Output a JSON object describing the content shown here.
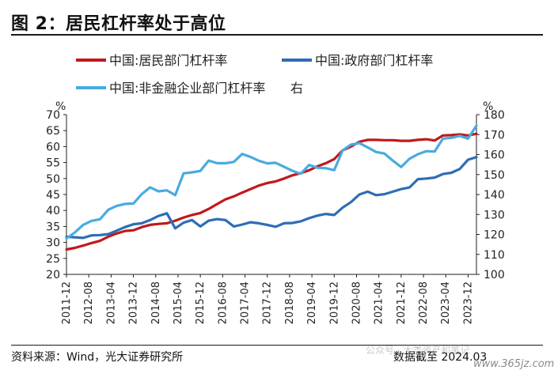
{
  "header": {
    "title": "图 2：居民杠杆率处于高位"
  },
  "footer": {
    "source": "资料来源：Wind，光大证券研究所",
    "cutoff": "数据截至 2024.03",
    "watermark": "公众号 · 大类资产和笔记",
    "website": "www.365jz.com"
  },
  "chart_data": {
    "type": "line",
    "left_unit": "%",
    "right_unit": "%",
    "right_axis_tag": "右",
    "left_ylim": [
      20,
      70
    ],
    "right_ylim": [
      100,
      180
    ],
    "left_ticks": [
      "20",
      "25",
      "30",
      "35",
      "40",
      "45",
      "50",
      "55",
      "60",
      "65",
      "70"
    ],
    "right_ticks": [
      "100",
      "110",
      "120",
      "130",
      "140",
      "150",
      "160",
      "170",
      "180"
    ],
    "x_labels": [
      "2011-12",
      "2012-08",
      "2013-04",
      "2013-12",
      "2014-08",
      "2015-04",
      "2015-12",
      "2016-08",
      "2017-04",
      "2017-12",
      "2018-08",
      "2019-04",
      "2019-12",
      "2020-08",
      "2021-04",
      "2021-12",
      "2022-08",
      "2023-04",
      "2023-12"
    ],
    "grid": false,
    "legend_position": "top",
    "series": [
      {
        "name": "中国:居民部门杠杆率",
        "axis": "left",
        "color": "#c0191c",
        "x": [
          "2011-12",
          "2012-03",
          "2012-06",
          "2012-09",
          "2012-12",
          "2013-03",
          "2013-06",
          "2013-09",
          "2013-12",
          "2014-03",
          "2014-06",
          "2014-09",
          "2014-12",
          "2015-03",
          "2015-06",
          "2015-09",
          "2015-12",
          "2016-03",
          "2016-06",
          "2016-09",
          "2016-12",
          "2017-03",
          "2017-06",
          "2017-09",
          "2017-12",
          "2018-03",
          "2018-06",
          "2018-09",
          "2018-12",
          "2019-03",
          "2019-06",
          "2019-09",
          "2019-12",
          "2020-03",
          "2020-06",
          "2020-09",
          "2020-12",
          "2021-03",
          "2021-06",
          "2021-09",
          "2021-12",
          "2022-03",
          "2022-06",
          "2022-09",
          "2022-12",
          "2023-03",
          "2023-06",
          "2023-09",
          "2023-12",
          "2024-03"
        ],
        "values": [
          27.8,
          28.3,
          29.0,
          29.8,
          30.5,
          31.8,
          32.8,
          33.6,
          33.8,
          34.8,
          35.5,
          35.8,
          36.0,
          36.8,
          37.8,
          38.6,
          39.2,
          40.5,
          42.0,
          43.5,
          44.4,
          45.6,
          46.7,
          47.8,
          48.6,
          49.1,
          50.0,
          51.0,
          51.7,
          52.6,
          53.8,
          54.8,
          56.1,
          58.8,
          60.0,
          61.5,
          62.1,
          62.1,
          62.0,
          62.0,
          61.8,
          61.8,
          62.1,
          62.3,
          61.9,
          63.5,
          63.6,
          63.8,
          63.5,
          64.0
        ]
      },
      {
        "name": "中国:政府部门杠杆率",
        "axis": "left",
        "color": "#2e6db5",
        "x": [
          "2011-12",
          "2012-03",
          "2012-06",
          "2012-09",
          "2012-12",
          "2013-03",
          "2013-06",
          "2013-09",
          "2013-12",
          "2014-03",
          "2014-06",
          "2014-09",
          "2014-12",
          "2015-03",
          "2015-06",
          "2015-09",
          "2015-12",
          "2016-03",
          "2016-06",
          "2016-09",
          "2016-12",
          "2017-03",
          "2017-06",
          "2017-09",
          "2017-12",
          "2018-03",
          "2018-06",
          "2018-09",
          "2018-12",
          "2019-03",
          "2019-06",
          "2019-09",
          "2019-12",
          "2020-03",
          "2020-06",
          "2020-09",
          "2020-12",
          "2021-03",
          "2021-06",
          "2021-09",
          "2021-12",
          "2022-03",
          "2022-06",
          "2022-09",
          "2022-12",
          "2023-03",
          "2023-06",
          "2023-09",
          "2023-12",
          "2024-03"
        ],
        "values": [
          31.8,
          31.6,
          31.4,
          32.2,
          32.3,
          32.6,
          33.7,
          34.8,
          35.7,
          36.0,
          37.0,
          38.3,
          39.1,
          34.4,
          36.2,
          37.0,
          35.0,
          36.8,
          37.3,
          37.0,
          35.0,
          35.6,
          36.3,
          36.0,
          35.5,
          34.9,
          36.0,
          36.1,
          36.6,
          37.6,
          38.4,
          38.9,
          38.6,
          40.9,
          42.6,
          45.0,
          45.9,
          44.8,
          45.1,
          45.9,
          46.7,
          47.2,
          49.8,
          50.0,
          50.3,
          51.4,
          51.8,
          53.0,
          55.9,
          56.7
        ]
      },
      {
        "name": "中国:非金融企业部门杠杆率",
        "axis": "right",
        "color": "#49abe0",
        "x": [
          "2011-12",
          "2012-03",
          "2012-06",
          "2012-09",
          "2012-12",
          "2013-03",
          "2013-06",
          "2013-09",
          "2013-12",
          "2014-03",
          "2014-06",
          "2014-09",
          "2014-12",
          "2015-03",
          "2015-06",
          "2015-09",
          "2015-12",
          "2016-03",
          "2016-06",
          "2016-09",
          "2016-12",
          "2017-03",
          "2017-06",
          "2017-09",
          "2017-12",
          "2018-03",
          "2018-06",
          "2018-09",
          "2018-12",
          "2019-03",
          "2019-06",
          "2019-09",
          "2019-12",
          "2020-03",
          "2020-06",
          "2020-09",
          "2020-12",
          "2021-03",
          "2021-06",
          "2021-09",
          "2021-12",
          "2022-03",
          "2022-06",
          "2022-09",
          "2022-12",
          "2023-03",
          "2023-06",
          "2023-09",
          "2023-12",
          "2024-03"
        ],
        "values": [
          118.0,
          121.0,
          124.8,
          126.8,
          127.6,
          132.4,
          134.3,
          135.3,
          135.5,
          140.2,
          143.6,
          141.6,
          142.1,
          139.7,
          150.6,
          151.1,
          151.8,
          157.0,
          155.7,
          155.7,
          156.3,
          160.3,
          158.8,
          156.9,
          155.6,
          155.9,
          153.9,
          151.9,
          150.4,
          154.8,
          153.4,
          153.2,
          152.2,
          162.1,
          165.0,
          165.8,
          163.6,
          161.3,
          160.5,
          157.0,
          153.8,
          157.9,
          160.2,
          161.7,
          161.5,
          168.0,
          168.4,
          169.4,
          168.0,
          174.5
        ]
      }
    ]
  }
}
